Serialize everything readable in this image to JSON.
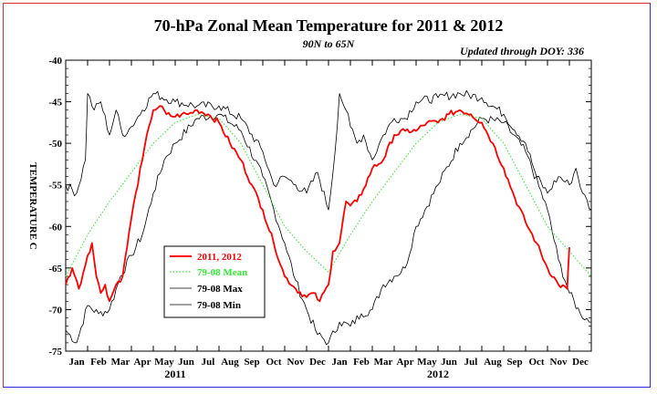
{
  "chart_data": {
    "type": "line",
    "title": "70-hPa Zonal Mean Temperature for 2011 & 2012",
    "subtitle": "90N to 65N",
    "note": "Updated through DOY: 336",
    "ylabel": "TEMPERATURE C",
    "ylim": [
      -75,
      -40
    ],
    "yticks": [
      "-40",
      "-45",
      "-50",
      "-55",
      "-60",
      "-65",
      "-70",
      "-75"
    ],
    "month_labels": [
      "Jan",
      "Feb",
      "Mar",
      "Apr",
      "May",
      "Jun",
      "Jul",
      "Aug",
      "Sep",
      "Oct",
      "Nov",
      "Dec",
      "Jan",
      "Feb",
      "Mar",
      "Apr",
      "May",
      "Jun",
      "Jul",
      "Aug",
      "Sep",
      "Oct",
      "Nov",
      "Dec"
    ],
    "year_labels": [
      "2011",
      "2012"
    ],
    "legend": [
      {
        "label": "2011, 2012",
        "color": "#ff0000",
        "style": "solid"
      },
      {
        "label": "79-08 Mean",
        "color": "#33ee33",
        "style": "dotted"
      },
      {
        "label": "79-08 Max",
        "color": "#000000",
        "style": "solid"
      },
      {
        "label": "79-08 Min",
        "color": "#000000",
        "style": "solid"
      }
    ],
    "x_units": "month index (0 = Jan 1 2011, 24 = end of 2012)",
    "series": [
      {
        "name": "2011, 2012",
        "color": "#ff0000",
        "x": [
          0,
          0.3,
          0.6,
          1.0,
          1.2,
          1.4,
          1.6,
          1.8,
          2.0,
          2.3,
          2.6,
          3.0,
          3.2,
          3.5,
          3.8,
          4.0,
          4.3,
          4.6,
          5.0,
          5.3,
          5.6,
          6.0,
          6.5,
          7.0,
          7.5,
          8.0,
          8.5,
          9.0,
          9.5,
          10.0,
          10.5,
          11.0,
          11.3,
          11.6,
          12.0,
          12.2,
          12.5,
          12.8,
          13.0,
          13.3,
          13.6,
          14.0,
          14.5,
          15.0,
          15.5,
          16.0,
          16.5,
          17.0,
          17.5,
          18.0,
          18.5,
          19.0,
          19.5,
          20.0,
          20.5,
          21.0,
          21.5,
          22.0,
          22.5,
          22.9,
          23.0
        ],
        "y": [
          -67,
          -65,
          -67.5,
          -63.5,
          -62,
          -66,
          -68,
          -67,
          -69,
          -67,
          -66,
          -59,
          -56,
          -52,
          -48,
          -46,
          -45.5,
          -46.5,
          -46.8,
          -46.5,
          -46.5,
          -46,
          -46.5,
          -47.5,
          -50,
          -52,
          -55,
          -58,
          -62,
          -66,
          -67.5,
          -68.5,
          -68,
          -69,
          -67,
          -63,
          -62,
          -57,
          -57.5,
          -57,
          -55.5,
          -53,
          -52,
          -49,
          -48.5,
          -48.5,
          -47.5,
          -47.5,
          -46.5,
          -46,
          -46.5,
          -47.5,
          -50,
          -53,
          -56.5,
          -59.5,
          -62,
          -65,
          -67,
          -67.5,
          -62.5
        ]
      },
      {
        "name": "79-08 Mean",
        "color": "#33ee33",
        "x": [
          0,
          1,
          2,
          3,
          4,
          5,
          6,
          7,
          8,
          9,
          10,
          11,
          12,
          13,
          14,
          15,
          16,
          17,
          18,
          19,
          20,
          21,
          22,
          23,
          24
        ],
        "y": [
          -66,
          -61,
          -57,
          -53.5,
          -50,
          -47.5,
          -46.5,
          -47,
          -50,
          -55,
          -60,
          -63,
          -65.5,
          -61,
          -57,
          -53.5,
          -50,
          -47.5,
          -46.5,
          -47,
          -50,
          -55,
          -60,
          -63,
          -66
        ]
      },
      {
        "name": "79-08 Max",
        "color": "#000000",
        "x": [
          0,
          0.5,
          0.9,
          1.0,
          1.3,
          1.6,
          2.0,
          2.3,
          2.6,
          3.0,
          3.5,
          4.0,
          5.0,
          6.0,
          7.0,
          8.0,
          9.0,
          9.5,
          10.0,
          10.5,
          11.0,
          11.5,
          12.0,
          12.3,
          12.5,
          12.8,
          13.0,
          13.3,
          13.6,
          14.0,
          14.5,
          15.0,
          15.5,
          16.0,
          17.0,
          18.0,
          19.0,
          20.0,
          21.0,
          21.5,
          22.0,
          22.5,
          23.0,
          23.3,
          23.6,
          24.0
        ],
        "y": [
          -55,
          -56,
          -52,
          -44,
          -46,
          -45,
          -49,
          -46,
          -49,
          -48,
          -46,
          -44,
          -45,
          -45.5,
          -45.5,
          -47,
          -51,
          -55,
          -54,
          -55,
          -56,
          -53.5,
          -58,
          -51,
          -44,
          -46,
          -48,
          -50,
          -49,
          -52,
          -49,
          -47,
          -47,
          -45,
          -44.5,
          -44,
          -44.5,
          -46.5,
          -50,
          -54,
          -56,
          -54,
          -55,
          -53,
          -56,
          -58
        ]
      },
      {
        "name": "79-08 Min",
        "color": "#000000",
        "x": [
          0,
          0.5,
          1.0,
          1.5,
          2.0,
          2.5,
          3.0,
          3.5,
          4.0,
          4.5,
          5.0,
          6.0,
          7.0,
          8.0,
          9.0,
          10.0,
          10.5,
          11.0,
          11.5,
          12.0,
          12.5,
          13.0,
          13.5,
          14.0,
          14.5,
          15.0,
          15.5,
          16.0,
          17.0,
          18.0,
          19.0,
          20.0,
          21.0,
          22.0,
          22.5,
          23.0,
          23.5,
          24.0
        ],
        "y": [
          -72.5,
          -74,
          -69.5,
          -70.5,
          -70,
          -66,
          -63.5,
          -61,
          -56,
          -52,
          -50,
          -47,
          -46.5,
          -48.5,
          -54,
          -62,
          -66.5,
          -70,
          -73,
          -74,
          -71.5,
          -72,
          -70.5,
          -70,
          -67,
          -66,
          -65,
          -60,
          -55,
          -50,
          -47,
          -47.5,
          -51,
          -58,
          -64,
          -68,
          -70.5,
          -71.5
        ]
      }
    ]
  }
}
